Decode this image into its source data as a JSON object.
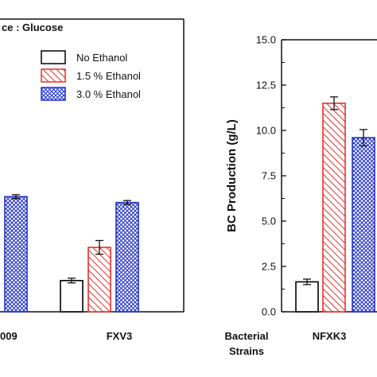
{
  "chart_data": [
    {
      "type": "bar",
      "title": "ce : Glucose",
      "categories": [
        "009",
        "FXV3"
      ],
      "series": [
        {
          "name": "No Ethanol",
          "values": [
            null,
            1.6
          ]
        },
        {
          "name": "1.5 % Ethanol",
          "values": [
            null,
            3.3
          ]
        },
        {
          "name": "3.0 % Ethanol",
          "values": [
            5.9,
            5.6
          ]
        }
      ],
      "errors": [
        [
          null,
          0.12
        ],
        [
          null,
          0.35
        ],
        [
          0.1,
          0.1
        ]
      ],
      "ylim": [
        0,
        15
      ],
      "legend_position": "top-right",
      "grid": false
    },
    {
      "type": "bar",
      "xlabel": "Bacterial Strains",
      "ylabel": "BC Production (g/L)",
      "ylim": [
        0,
        15
      ],
      "yticks": [
        "0.0",
        "2.5",
        "5.0",
        "7.5",
        "10.0",
        "12.5",
        "15.0"
      ],
      "categories": [
        "NFXK3"
      ],
      "series": [
        {
          "name": "No Ethanol",
          "values": [
            1.65
          ]
        },
        {
          "name": "1.5 % Ethanol",
          "values": [
            11.5
          ]
        },
        {
          "name": "3.0 % Ethanol",
          "values": [
            9.6
          ]
        }
      ],
      "errors": [
        [
          0.15
        ],
        [
          0.35
        ],
        [
          0.45
        ]
      ],
      "grid": false
    }
  ],
  "colors": {
    "no_ethanol": "#000000",
    "ethanol_1_5": "#e8302c",
    "ethanol_3_0": "#2233cc"
  }
}
